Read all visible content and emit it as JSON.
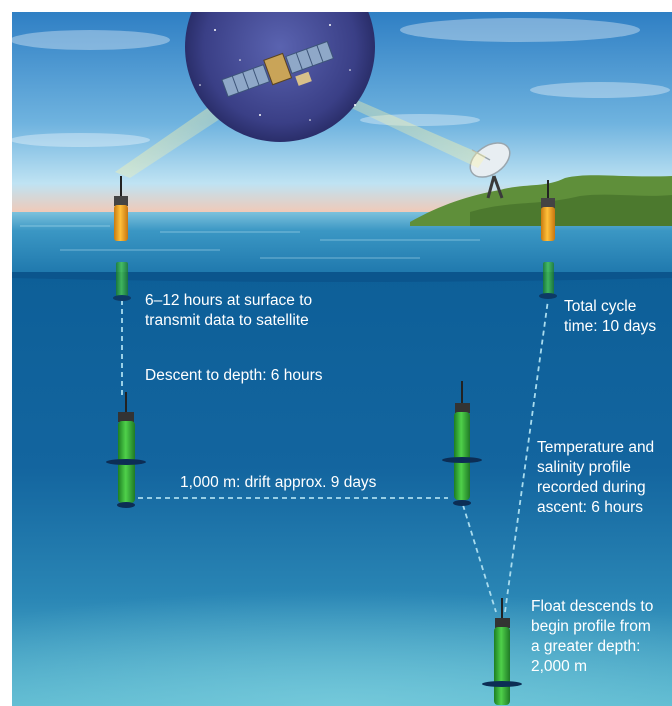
{
  "labels": {
    "surface": [
      "6–12 hours at surface to",
      "transmit data to satellite"
    ],
    "descent": "Descent to depth: 6 hours",
    "drift": "1,000 m: drift approx. 9 days",
    "cycle": [
      "Total cycle",
      "time: 10 days"
    ],
    "ascent": [
      "Temperature and",
      "salinity profile",
      "recorded during",
      "ascent: 6 hours"
    ],
    "deep": [
      "Float descends to",
      "begin profile from",
      "a greater depth:",
      "2,000 m"
    ]
  },
  "colors": {
    "sky_top": "#2f7fc4",
    "sky_bottom": "#bfe3f3",
    "horizon": "#f3c8b4",
    "sea_surface": "#2a86b8",
    "water_top": "#136aa3",
    "water_bottom": "#4fb0cc",
    "float_green": "#38b53a",
    "float_orange": "#f0a11e",
    "island": "#5f8f3a",
    "space": "#3a3f86",
    "dashed_line": "#a9dcee"
  },
  "icons": [
    "satellite-icon",
    "satellite-dish-icon",
    "float-icon",
    "island-icon"
  ]
}
